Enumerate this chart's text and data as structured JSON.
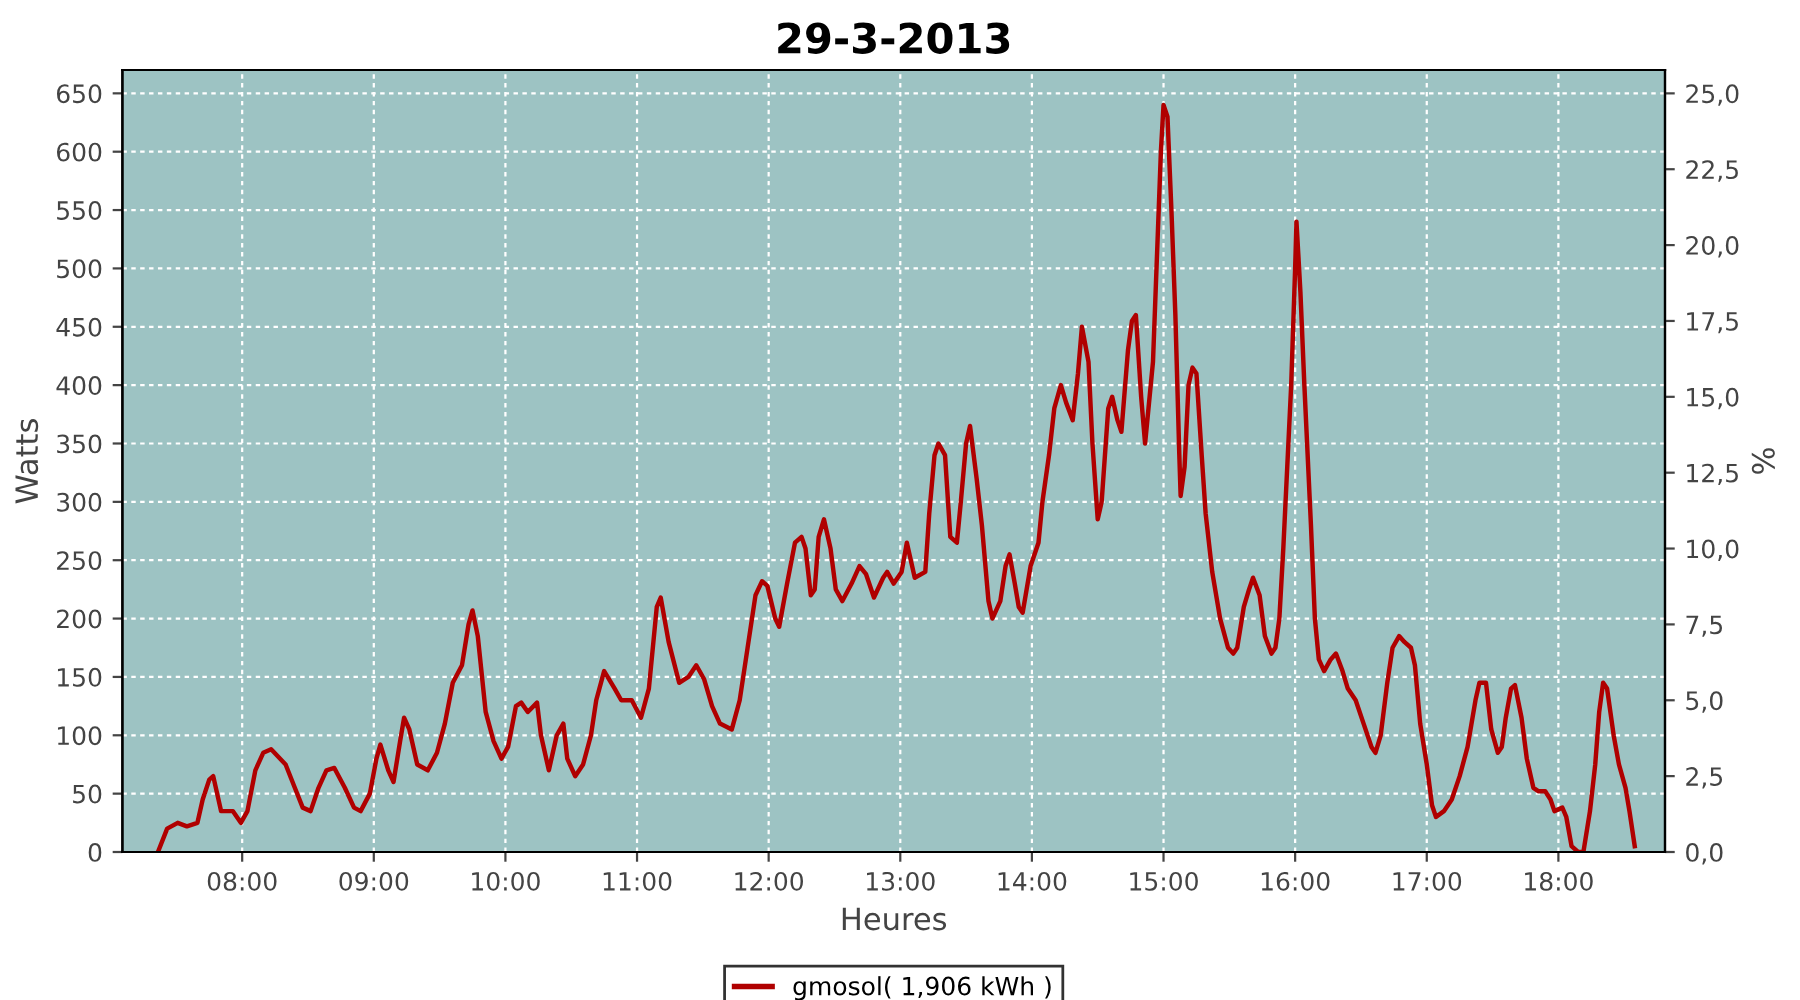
{
  "chart_data": {
    "type": "line",
    "title": "29-3-2013",
    "xlabel": "Heures",
    "ylabel": "Watts",
    "y2label": "%",
    "legend": "bottom",
    "grid": true,
    "marker": "none",
    "line_style": "solid",
    "xlim": [
      7.09,
      18.81
    ],
    "xticks": [
      {
        "value": 8,
        "label": "08:00"
      },
      {
        "value": 9,
        "label": "09:00"
      },
      {
        "value": 10,
        "label": "10:00"
      },
      {
        "value": 11,
        "label": "11:00"
      },
      {
        "value": 12,
        "label": "12:00"
      },
      {
        "value": 13,
        "label": "13:00"
      },
      {
        "value": 14,
        "label": "14:00"
      },
      {
        "value": 15,
        "label": "15:00"
      },
      {
        "value": 16,
        "label": "16:00"
      },
      {
        "value": 17,
        "label": "17:00"
      },
      {
        "value": 18,
        "label": "18:00"
      }
    ],
    "ylim": [
      0,
      670
    ],
    "yticks": [
      0,
      50,
      100,
      150,
      200,
      250,
      300,
      350,
      400,
      450,
      500,
      550,
      600,
      650
    ],
    "y2lim": [
      0,
      25.77
    ],
    "y2ticks": [
      {
        "value": 0,
        "label": "0,0"
      },
      {
        "value": 2.5,
        "label": "2,5"
      },
      {
        "value": 5,
        "label": "5,0"
      },
      {
        "value": 7.5,
        "label": "7,5"
      },
      {
        "value": 10,
        "label": "10,0"
      },
      {
        "value": 12.5,
        "label": "12,5"
      },
      {
        "value": 15,
        "label": "15,0"
      },
      {
        "value": 17.5,
        "label": "17,5"
      },
      {
        "value": 20,
        "label": "20,0"
      },
      {
        "value": 22.5,
        "label": "22,5"
      },
      {
        "value": 25,
        "label": "25,0"
      }
    ],
    "series": [
      {
        "name": "gmosol( 1,906 kWh )",
        "color": "#b00000",
        "x": [
          7.36,
          7.43,
          7.51,
          7.58,
          7.66,
          7.7,
          7.75,
          7.78,
          7.84,
          7.93,
          7.99,
          8.04,
          8.1,
          8.16,
          8.22,
          8.33,
          8.4,
          8.46,
          8.52,
          8.58,
          8.64,
          8.7,
          8.78,
          8.85,
          8.9,
          8.97,
          9.02,
          9.05,
          9.11,
          9.15,
          9.2,
          9.23,
          9.27,
          9.33,
          9.41,
          9.48,
          9.54,
          9.6,
          9.67,
          9.72,
          9.75,
          9.79,
          9.85,
          9.91,
          9.97,
          10.02,
          10.08,
          10.12,
          10.17,
          10.24,
          10.27,
          10.33,
          10.39,
          10.44,
          10.47,
          10.53,
          10.59,
          10.65,
          10.69,
          10.75,
          10.83,
          10.88,
          10.96,
          11.03,
          11.09,
          11.15,
          11.18,
          11.24,
          11.32,
          11.39,
          11.45,
          11.51,
          11.57,
          11.63,
          11.72,
          11.78,
          11.84,
          11.9,
          11.95,
          11.99,
          12.05,
          12.08,
          12.14,
          12.2,
          12.25,
          12.28,
          12.32,
          12.35,
          12.38,
          12.42,
          12.47,
          12.51,
          12.56,
          12.63,
          12.69,
          12.74,
          12.8,
          12.87,
          12.9,
          12.95,
          13.01,
          13.05,
          13.11,
          13.19,
          13.22,
          13.26,
          13.29,
          13.34,
          13.38,
          13.43,
          13.46,
          13.5,
          13.53,
          13.58,
          13.62,
          13.67,
          13.7,
          13.76,
          13.8,
          13.83,
          13.87,
          13.9,
          13.93,
          13.99,
          14.05,
          14.08,
          14.13,
          14.17,
          14.22,
          14.26,
          14.31,
          14.35,
          14.38,
          14.43,
          14.46,
          14.5,
          14.53,
          14.58,
          14.61,
          14.65,
          14.68,
          14.73,
          14.76,
          14.79,
          14.83,
          14.86,
          14.92,
          14.95,
          14.98,
          15.0,
          15.03,
          15.06,
          15.09,
          15.12,
          15.13,
          15.16,
          15.19,
          15.22,
          15.25,
          15.29,
          15.32,
          15.37,
          15.43,
          15.49,
          15.53,
          15.56,
          15.61,
          15.65,
          15.68,
          15.73,
          15.77,
          15.82,
          15.85,
          15.88,
          15.91,
          15.94,
          15.97,
          16.0,
          16.01,
          16.04,
          16.07,
          16.12,
          16.15,
          16.18,
          16.22,
          16.27,
          16.31,
          16.36,
          16.4,
          16.46,
          16.52,
          16.58,
          16.61,
          16.65,
          16.7,
          16.74,
          16.79,
          16.83,
          16.88,
          16.91,
          16.95,
          17.0,
          17.04,
          17.07,
          17.13,
          17.19,
          17.25,
          17.31,
          17.37,
          17.4,
          17.45,
          17.49,
          17.54,
          17.57,
          17.6,
          17.64,
          17.67,
          17.72,
          17.76,
          17.81,
          17.85,
          17.9,
          17.94,
          17.97,
          18.03,
          18.06,
          18.1,
          18.15,
          18.19,
          18.24,
          18.28,
          18.31,
          18.34,
          18.37,
          18.42,
          18.46,
          18.51,
          18.54,
          18.58
        ],
        "values": [
          0,
          20,
          25,
          22,
          25,
          45,
          62,
          65,
          35,
          35,
          25,
          35,
          70,
          85,
          88,
          75,
          55,
          38,
          35,
          55,
          70,
          72,
          55,
          38,
          35,
          50,
          80,
          92,
          70,
          60,
          95,
          115,
          105,
          75,
          70,
          85,
          110,
          145,
          160,
          195,
          207,
          185,
          120,
          95,
          80,
          90,
          125,
          128,
          120,
          128,
          100,
          70,
          100,
          110,
          80,
          65,
          75,
          100,
          130,
          155,
          140,
          130,
          130,
          115,
          140,
          210,
          218,
          180,
          145,
          150,
          160,
          148,
          125,
          110,
          105,
          130,
          175,
          220,
          232,
          228,
          200,
          193,
          230,
          265,
          270,
          260,
          220,
          225,
          270,
          285,
          260,
          225,
          215,
          230,
          245,
          238,
          218,
          235,
          240,
          230,
          240,
          265,
          235,
          240,
          290,
          340,
          350,
          340,
          270,
          265,
          300,
          350,
          365,
          320,
          280,
          215,
          200,
          215,
          245,
          255,
          230,
          210,
          205,
          245,
          265,
          300,
          340,
          380,
          400,
          385,
          370,
          410,
          450,
          420,
          350,
          285,
          300,
          380,
          390,
          370,
          360,
          430,
          455,
          460,
          390,
          350,
          420,
          510,
          600,
          640,
          630,
          550,
          460,
          340,
          305,
          330,
          400,
          415,
          410,
          340,
          290,
          240,
          200,
          175,
          170,
          175,
          210,
          225,
          235,
          220,
          185,
          170,
          175,
          200,
          260,
          330,
          400,
          500,
          540,
          480,
          400,
          280,
          200,
          165,
          155,
          165,
          170,
          155,
          140,
          130,
          110,
          90,
          85,
          100,
          145,
          175,
          185,
          180,
          175,
          160,
          110,
          75,
          40,
          30,
          35,
          45,
          65,
          90,
          130,
          145,
          145,
          105,
          85,
          90,
          115,
          140,
          143,
          115,
          80,
          55,
          52,
          52,
          45,
          35,
          38,
          30,
          5,
          0,
          0,
          35,
          75,
          120,
          145,
          140,
          100,
          75,
          55,
          35,
          5
        ]
      }
    ]
  }
}
